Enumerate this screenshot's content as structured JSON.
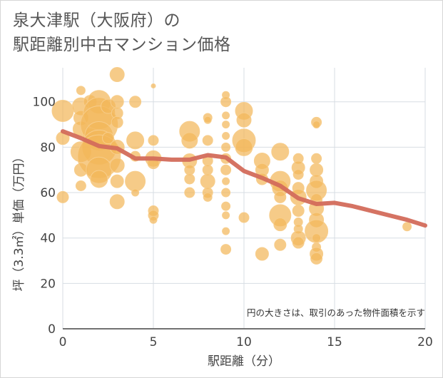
{
  "title_line1": "泉大津駅（大阪府）の",
  "title_line2": "駅距離別中古マンション価格",
  "chart_data": {
    "type": "scatter",
    "xlabel": "駅距離（分）",
    "ylabel": "坪（3.3㎡）単価（万円）",
    "xlim": [
      0,
      20
    ],
    "ylim": [
      0,
      115
    ],
    "x_ticks": [
      "0",
      "5",
      "10",
      "15",
      "20"
    ],
    "y_ticks": [
      "0",
      "20",
      "40",
      "60",
      "80",
      "100"
    ],
    "grid": true,
    "note": "円の大きさは、取引のあった物件面積を示す",
    "colors": {
      "bubble": "#f3b75a",
      "line": "#d36b5b",
      "grid": "#d7dde3"
    },
    "trend_line": {
      "x": [
        0,
        1,
        2,
        3,
        4,
        5,
        6,
        7,
        8,
        9,
        10,
        11,
        12,
        13,
        14,
        15,
        16,
        17,
        18,
        19,
        20
      ],
      "y": [
        87,
        84,
        80.5,
        79.5,
        75,
        75,
        74.5,
        74.5,
        76.5,
        75.5,
        69.5,
        66.5,
        63,
        57.5,
        55,
        55.5,
        54,
        52,
        50,
        48,
        45.5
      ]
    },
    "points": [
      {
        "x": 0,
        "y": 96,
        "s": 15
      },
      {
        "x": 0,
        "y": 84,
        "s": 9
      },
      {
        "x": 0,
        "y": 58,
        "s": 8
      },
      {
        "x": 1,
        "y": 105,
        "s": 6
      },
      {
        "x": 1,
        "y": 98,
        "s": 12
      },
      {
        "x": 1,
        "y": 93,
        "s": 10
      },
      {
        "x": 1,
        "y": 88,
        "s": 11
      },
      {
        "x": 1,
        "y": 78,
        "s": 14
      },
      {
        "x": 1,
        "y": 70,
        "s": 9
      },
      {
        "x": 1,
        "y": 63,
        "s": 7
      },
      {
        "x": 1.5,
        "y": 100,
        "s": 9
      },
      {
        "x": 1.5,
        "y": 85,
        "s": 10
      },
      {
        "x": 2,
        "y": 100,
        "s": 16
      },
      {
        "x": 2,
        "y": 95,
        "s": 22
      },
      {
        "x": 2,
        "y": 90,
        "s": 26
      },
      {
        "x": 2,
        "y": 85,
        "s": 20
      },
      {
        "x": 2,
        "y": 80,
        "s": 24
      },
      {
        "x": 2,
        "y": 76,
        "s": 30
      },
      {
        "x": 2,
        "y": 70,
        "s": 18
      },
      {
        "x": 2,
        "y": 66,
        "s": 12
      },
      {
        "x": 2.5,
        "y": 98,
        "s": 10
      },
      {
        "x": 2.5,
        "y": 84,
        "s": 8
      },
      {
        "x": 3,
        "y": 112,
        "s": 10
      },
      {
        "x": 3,
        "y": 100,
        "s": 9
      },
      {
        "x": 3,
        "y": 95,
        "s": 8
      },
      {
        "x": 3,
        "y": 91,
        "s": 8
      },
      {
        "x": 3,
        "y": 80,
        "s": 10
      },
      {
        "x": 3,
        "y": 72,
        "s": 10
      },
      {
        "x": 3,
        "y": 65,
        "s": 9
      },
      {
        "x": 3,
        "y": 56,
        "s": 10
      },
      {
        "x": 4,
        "y": 100,
        "s": 8
      },
      {
        "x": 4,
        "y": 83,
        "s": 12
      },
      {
        "x": 4,
        "y": 76,
        "s": 7
      },
      {
        "x": 4,
        "y": 65,
        "s": 14
      },
      {
        "x": 4,
        "y": 60,
        "s": 5
      },
      {
        "x": 5,
        "y": 107,
        "s": 3
      },
      {
        "x": 5,
        "y": 83,
        "s": 7
      },
      {
        "x": 5,
        "y": 75,
        "s": 11
      },
      {
        "x": 5,
        "y": 73,
        "s": 8
      },
      {
        "x": 5,
        "y": 52,
        "s": 7
      },
      {
        "x": 5,
        "y": 50,
        "s": 7
      },
      {
        "x": 5,
        "y": 48,
        "s": 5
      },
      {
        "x": 7,
        "y": 87,
        "s": 14
      },
      {
        "x": 7,
        "y": 83,
        "s": 11
      },
      {
        "x": 7,
        "y": 74,
        "s": 10
      },
      {
        "x": 7,
        "y": 70,
        "s": 7
      },
      {
        "x": 7,
        "y": 66,
        "s": 7
      },
      {
        "x": 7,
        "y": 60,
        "s": 7
      },
      {
        "x": 8,
        "y": 93,
        "s": 6
      },
      {
        "x": 8,
        "y": 92,
        "s": 5
      },
      {
        "x": 8,
        "y": 83,
        "s": 7
      },
      {
        "x": 8,
        "y": 74,
        "s": 7
      },
      {
        "x": 8,
        "y": 70,
        "s": 7
      },
      {
        "x": 8,
        "y": 65,
        "s": 10
      },
      {
        "x": 8,
        "y": 60,
        "s": 7
      },
      {
        "x": 8,
        "y": 58,
        "s": 6
      },
      {
        "x": 9,
        "y": 103,
        "s": 5
      },
      {
        "x": 9,
        "y": 100,
        "s": 7
      },
      {
        "x": 9,
        "y": 94,
        "s": 5
      },
      {
        "x": 9,
        "y": 90,
        "s": 5
      },
      {
        "x": 9,
        "y": 85,
        "s": 5
      },
      {
        "x": 9,
        "y": 80,
        "s": 6
      },
      {
        "x": 9,
        "y": 75,
        "s": 7
      },
      {
        "x": 9,
        "y": 70,
        "s": 7
      },
      {
        "x": 9,
        "y": 65,
        "s": 5
      },
      {
        "x": 9,
        "y": 60,
        "s": 6
      },
      {
        "x": 9,
        "y": 54,
        "s": 6
      },
      {
        "x": 9,
        "y": 50,
        "s": 5
      },
      {
        "x": 9,
        "y": 43,
        "s": 5
      },
      {
        "x": 9,
        "y": 35,
        "s": 7
      },
      {
        "x": 10,
        "y": 96,
        "s": 12
      },
      {
        "x": 10,
        "y": 92,
        "s": 10
      },
      {
        "x": 10,
        "y": 83,
        "s": 16
      },
      {
        "x": 10,
        "y": 80,
        "s": 12
      },
      {
        "x": 10,
        "y": 49,
        "s": 7
      },
      {
        "x": 11,
        "y": 74,
        "s": 11
      },
      {
        "x": 11,
        "y": 70,
        "s": 9
      },
      {
        "x": 11,
        "y": 66,
        "s": 8
      },
      {
        "x": 11,
        "y": 33,
        "s": 9
      },
      {
        "x": 12,
        "y": 78,
        "s": 12
      },
      {
        "x": 12,
        "y": 65,
        "s": 14
      },
      {
        "x": 12,
        "y": 62,
        "s": 11
      },
      {
        "x": 12,
        "y": 58,
        "s": 8
      },
      {
        "x": 12,
        "y": 50,
        "s": 15
      },
      {
        "x": 12,
        "y": 46,
        "s": 9
      },
      {
        "x": 12,
        "y": 37,
        "s": 8
      },
      {
        "x": 13,
        "y": 75,
        "s": 7
      },
      {
        "x": 13,
        "y": 71,
        "s": 9
      },
      {
        "x": 13,
        "y": 68,
        "s": 7
      },
      {
        "x": 13,
        "y": 62,
        "s": 8
      },
      {
        "x": 13,
        "y": 58,
        "s": 11
      },
      {
        "x": 13,
        "y": 52,
        "s": 8
      },
      {
        "x": 13,
        "y": 47,
        "s": 6
      },
      {
        "x": 13,
        "y": 44,
        "s": 6
      },
      {
        "x": 13,
        "y": 40,
        "s": 10
      },
      {
        "x": 13,
        "y": 38,
        "s": 8
      },
      {
        "x": 14,
        "y": 91,
        "s": 7
      },
      {
        "x": 14,
        "y": 90,
        "s": 5
      },
      {
        "x": 14,
        "y": 75,
        "s": 7
      },
      {
        "x": 14,
        "y": 70,
        "s": 9
      },
      {
        "x": 14,
        "y": 65,
        "s": 9
      },
      {
        "x": 14,
        "y": 61,
        "s": 14
      },
      {
        "x": 14,
        "y": 57,
        "s": 8
      },
      {
        "x": 14,
        "y": 53,
        "s": 10
      },
      {
        "x": 14,
        "y": 48,
        "s": 10
      },
      {
        "x": 14,
        "y": 43,
        "s": 16
      },
      {
        "x": 14,
        "y": 40,
        "s": 6
      },
      {
        "x": 14,
        "y": 36,
        "s": 6
      },
      {
        "x": 14,
        "y": 33,
        "s": 9
      },
      {
        "x": 14,
        "y": 31,
        "s": 8
      },
      {
        "x": 19,
        "y": 45,
        "s": 6
      }
    ]
  }
}
